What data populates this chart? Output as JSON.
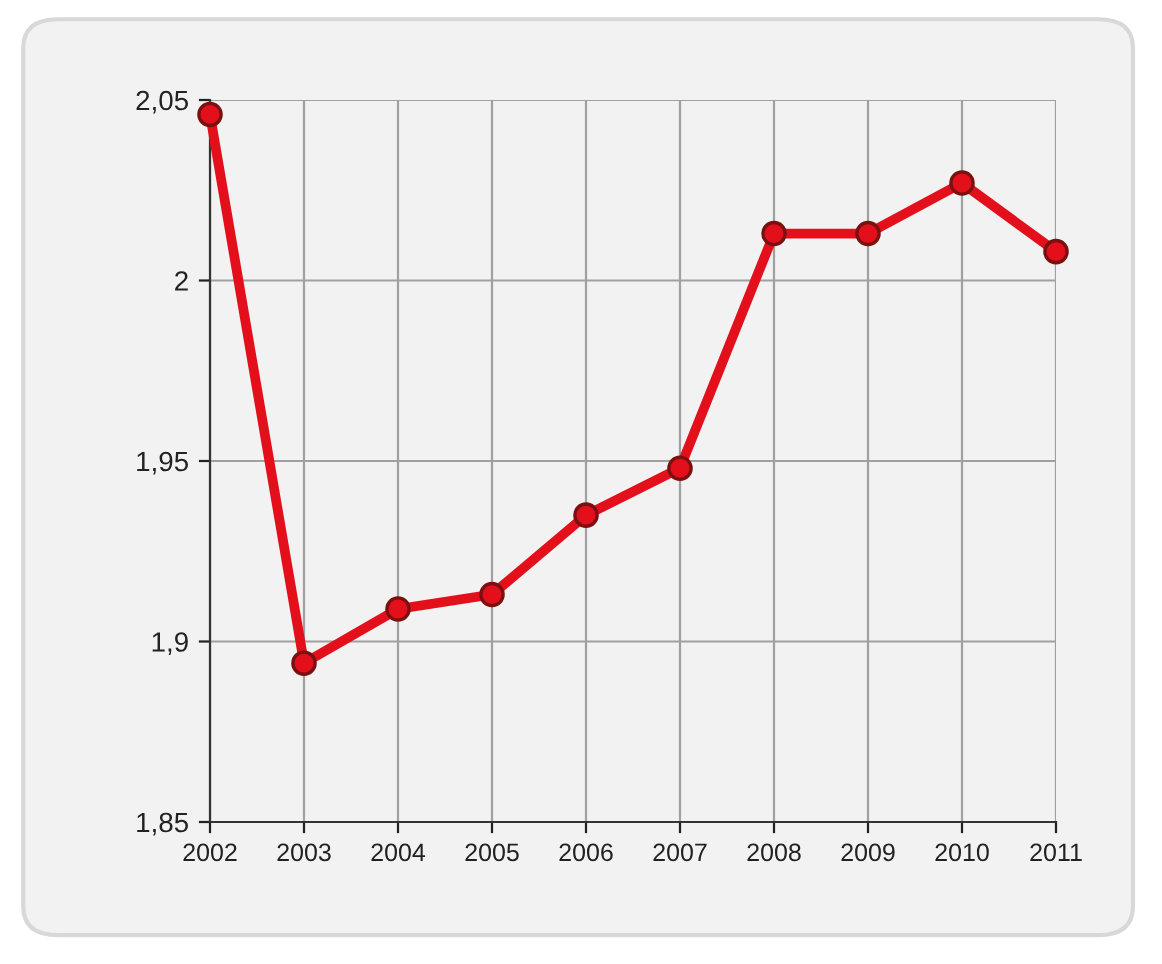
{
  "chart_data": {
    "type": "line",
    "categories": [
      "2002",
      "2003",
      "2004",
      "2005",
      "2006",
      "2007",
      "2008",
      "2009",
      "2010",
      "2011"
    ],
    "series": [
      {
        "color": "#e3101c",
        "values": [
          2.046,
          1.894,
          1.909,
          1.913,
          1.935,
          1.948,
          2.013,
          2.013,
          2.027,
          2.008
        ]
      }
    ],
    "ylim": [
      1.85,
      2.05
    ],
    "yticks": [
      {
        "value": 1.85,
        "label": "1,85"
      },
      {
        "value": 1.9,
        "label": "1,9"
      },
      {
        "value": 1.95,
        "label": "1,95"
      },
      {
        "value": 2,
        "label": "2"
      },
      {
        "value": 2.05,
        "label": "2,05"
      }
    ],
    "grid": true,
    "marker": "circle",
    "line_style": "solid",
    "legend": false
  }
}
